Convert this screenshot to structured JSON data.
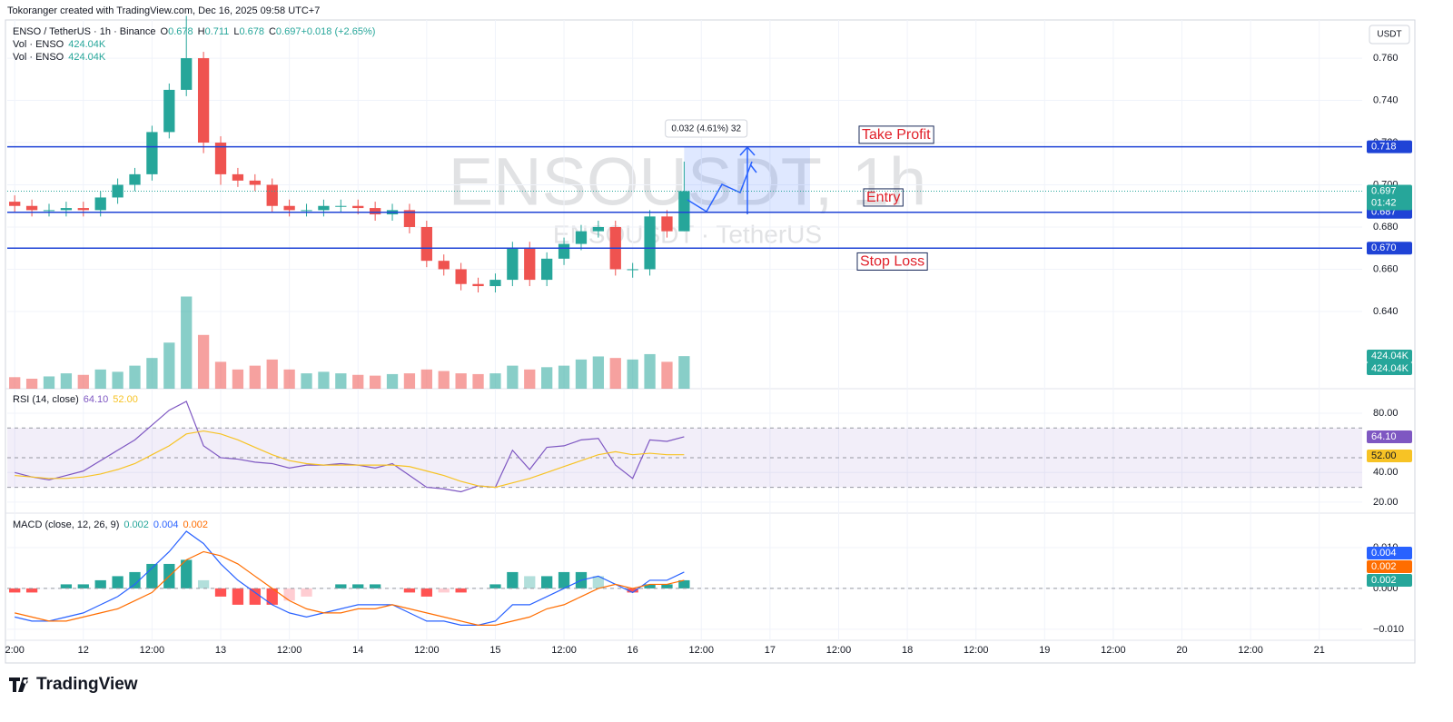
{
  "header": {
    "credit": "Tokoranger created with TradingView.com, Dec 16, 2025 09:58 UTC+7",
    "brand": "TradingView",
    "scale_unit": "USDT",
    "watermark": "ENSOUSDT, 1h",
    "watermark_sub": "ENSOUSDT · TetherUS"
  },
  "chart_data": [
    {
      "type": "candlestick",
      "title": "ENSO / TetherUS · 1h · Binance",
      "ohlc": [
        {
          "label": "O",
          "value": "0.678"
        },
        {
          "label": "H",
          "value": "0.711"
        },
        {
          "label": "L",
          "value": "0.678"
        },
        {
          "label": "C",
          "value": "0.697"
        },
        {
          "label": "",
          "value": "+0.018 (+2.65%)"
        }
      ],
      "volume_legend": [
        {
          "label": "Vol · ENSO",
          "value": "424.04K"
        },
        {
          "label": "Vol · ENSO",
          "value": "424.04K"
        }
      ],
      "x": [
        -12,
        -9,
        -6,
        -3,
        0,
        3,
        6,
        9,
        12,
        15,
        18,
        21,
        24,
        27,
        30,
        33,
        36,
        39,
        42,
        45,
        48,
        51,
        54,
        57,
        60,
        63,
        66,
        69,
        72,
        75,
        78,
        81,
        84,
        87,
        90,
        93,
        96,
        99,
        102,
        105
      ],
      "open": [
        0.692,
        0.69,
        0.688,
        0.688,
        0.689,
        0.688,
        0.694,
        0.7,
        0.705,
        0.725,
        0.745,
        0.76,
        0.72,
        0.705,
        0.702,
        0.7,
        0.69,
        0.688,
        0.688,
        0.69,
        0.69,
        0.689,
        0.686,
        0.688,
        0.68,
        0.664,
        0.66,
        0.653,
        0.652,
        0.655,
        0.67,
        0.655,
        0.665,
        0.672,
        0.678,
        0.68,
        0.66,
        0.66,
        0.685,
        0.678
      ],
      "high": [
        0.695,
        0.693,
        0.691,
        0.692,
        0.692,
        0.697,
        0.703,
        0.708,
        0.728,
        0.748,
        0.78,
        0.763,
        0.723,
        0.708,
        0.705,
        0.703,
        0.693,
        0.691,
        0.693,
        0.693,
        0.693,
        0.692,
        0.691,
        0.691,
        0.683,
        0.667,
        0.663,
        0.656,
        0.658,
        0.673,
        0.673,
        0.668,
        0.675,
        0.681,
        0.683,
        0.683,
        0.663,
        0.688,
        0.688,
        0.711
      ],
      "low": [
        0.687,
        0.685,
        0.685,
        0.685,
        0.685,
        0.685,
        0.691,
        0.697,
        0.702,
        0.722,
        0.742,
        0.715,
        0.7,
        0.699,
        0.697,
        0.687,
        0.685,
        0.685,
        0.685,
        0.687,
        0.686,
        0.683,
        0.683,
        0.677,
        0.661,
        0.657,
        0.65,
        0.649,
        0.649,
        0.652,
        0.652,
        0.652,
        0.662,
        0.669,
        0.675,
        0.657,
        0.656,
        0.657,
        0.675,
        0.678
      ],
      "close": [
        0.69,
        0.688,
        0.688,
        0.689,
        0.688,
        0.694,
        0.7,
        0.705,
        0.725,
        0.745,
        0.76,
        0.72,
        0.705,
        0.702,
        0.7,
        0.69,
        0.688,
        0.688,
        0.69,
        0.69,
        0.689,
        0.686,
        0.688,
        0.68,
        0.664,
        0.66,
        0.653,
        0.652,
        0.655,
        0.67,
        0.655,
        0.665,
        0.672,
        0.678,
        0.68,
        0.66,
        0.66,
        0.685,
        0.678,
        0.697
      ],
      "volume": [
        150000,
        130000,
        160000,
        200000,
        180000,
        250000,
        220000,
        300000,
        400000,
        600000,
        1200000,
        700000,
        350000,
        250000,
        300000,
        380000,
        250000,
        200000,
        220000,
        200000,
        180000,
        170000,
        190000,
        200000,
        250000,
        230000,
        200000,
        190000,
        200000,
        300000,
        250000,
        280000,
        300000,
        380000,
        420000,
        400000,
        380000,
        450000,
        350000,
        424040
      ],
      "volume_tags": [
        "424.04K",
        "424.04K"
      ],
      "volume_lim": [
        0,
        4800000
      ],
      "up_color": "#26a69a",
      "down_color": "#ef5350",
      "xlim": [
        -13.3,
        223.5
      ],
      "xticks": [
        {
          "value": -12,
          "label": "2:00"
        },
        {
          "value": 0,
          "label": "12"
        },
        {
          "value": 12,
          "label": "12:00"
        },
        {
          "value": 24,
          "label": "13"
        },
        {
          "value": 36,
          "label": "12:00"
        },
        {
          "value": 48,
          "label": "14"
        },
        {
          "value": 60,
          "label": "12:00"
        },
        {
          "value": 72,
          "label": "15"
        },
        {
          "value": 84,
          "label": "12:00"
        },
        {
          "value": 96,
          "label": "16"
        },
        {
          "value": 108,
          "label": "12:00"
        },
        {
          "value": 120,
          "label": "17"
        },
        {
          "value": 132,
          "label": "12:00"
        },
        {
          "value": 144,
          "label": "18"
        },
        {
          "value": 156,
          "label": "12:00"
        },
        {
          "value": 168,
          "label": "19"
        },
        {
          "value": 180,
          "label": "12:00"
        },
        {
          "value": 192,
          "label": "20"
        },
        {
          "value": 204,
          "label": "12:00"
        },
        {
          "value": 216,
          "label": "21"
        }
      ],
      "ylim": [
        0.6034,
        0.7781
      ],
      "yticks": [
        {
          "value": 0.64,
          "label": "0.640"
        },
        {
          "value": 0.66,
          "label": "0.660"
        },
        {
          "value": 0.68,
          "label": "0.680"
        },
        {
          "value": 0.7,
          "label": "0.700"
        },
        {
          "value": 0.72,
          "label": "0.720"
        },
        {
          "value": 0.74,
          "label": "0.740"
        },
        {
          "value": 0.76,
          "label": "0.760"
        }
      ],
      "grid": true,
      "levels": [
        {
          "name": "Take Profit",
          "value": 0.718,
          "label": "0.718"
        },
        {
          "name": "Entry",
          "value": 0.687,
          "label": "0.687"
        },
        {
          "name": "Stop Loss",
          "value": 0.67,
          "label": "0.670"
        }
      ],
      "level_color": "#1f43d6",
      "position": {
        "x": [
          105,
          127
        ],
        "top": 0.718,
        "bottom": 0.687,
        "label": "0.032 (4.61%) 32"
      },
      "last_price": {
        "value": 0.697,
        "label": "0.697",
        "countdown": "01:42"
      }
    },
    {
      "type": "line",
      "title": "RSI (14, close)",
      "x": [
        -12,
        -9,
        -6,
        -3,
        0,
        3,
        6,
        9,
        12,
        15,
        18,
        21,
        24,
        27,
        30,
        33,
        36,
        39,
        42,
        45,
        48,
        51,
        54,
        57,
        60,
        63,
        66,
        69,
        72,
        75,
        78,
        81,
        84,
        87,
        90,
        93,
        96,
        99,
        102,
        105
      ],
      "series": [
        {
          "color": "#7e57c2",
          "value_label": "64.10",
          "values": [
            40,
            37,
            35,
            38,
            41,
            48,
            55,
            62,
            72,
            82,
            88,
            58,
            50,
            49,
            47,
            46,
            43,
            45,
            45,
            46,
            45,
            43,
            46,
            38,
            30,
            29,
            27,
            31,
            30,
            55,
            42,
            57,
            58,
            62,
            63,
            45,
            36,
            62,
            61,
            64.1
          ]
        },
        {
          "color": "#f7c325",
          "value_label": "52.00",
          "values": [
            38,
            37,
            36,
            36,
            37,
            39,
            42,
            46,
            52,
            58,
            66,
            68,
            66,
            62,
            57,
            52,
            48,
            46,
            45,
            45,
            45,
            45,
            45,
            44,
            41,
            38,
            34,
            31,
            30,
            33,
            36,
            40,
            44,
            48,
            52,
            54,
            52,
            53,
            52,
            52
          ]
        }
      ],
      "ylim": [
        12.6,
        95.3
      ],
      "yticks": [
        {
          "value": 20,
          "label": "20.00"
        },
        {
          "value": 40,
          "label": "40.00"
        },
        {
          "value": 80,
          "label": "80.00"
        }
      ],
      "bands": [
        30,
        70
      ],
      "mid": 50,
      "band_color": "#7e57c2"
    },
    {
      "type": "macd",
      "title": "MACD (close, 12, 26, 9)",
      "x": [
        -12,
        -9,
        -6,
        -3,
        0,
        3,
        6,
        9,
        12,
        15,
        18,
        21,
        24,
        27,
        30,
        33,
        36,
        39,
        42,
        45,
        48,
        51,
        54,
        57,
        60,
        63,
        66,
        69,
        72,
        75,
        78,
        81,
        84,
        87,
        90,
        93,
        96,
        99,
        102,
        105
      ],
      "histogram": {
        "value_label": "0.002",
        "colors": [
          "#26a69a",
          "#b2dfdb",
          "#ffcdd2",
          "#ff5252"
        ],
        "values": [
          -0.001,
          -0.001,
          0,
          0.001,
          0.001,
          0.002,
          0.003,
          0.004,
          0.006,
          0.006,
          0.007,
          0.002,
          -0.002,
          -0.004,
          -0.004,
          -0.004,
          -0.003,
          -0.002,
          0,
          0.001,
          0.001,
          0.001,
          0,
          -0.001,
          -0.002,
          -0.001,
          -0.001,
          0,
          0.001,
          0.004,
          0.003,
          0.003,
          0.004,
          0.004,
          0.003,
          0,
          -0.001,
          0.001,
          0.001,
          0.002
        ]
      },
      "series": [
        {
          "color": "#2962ff",
          "value_label": "0.004",
          "values": [
            -0.007,
            -0.008,
            -0.008,
            -0.007,
            -0.006,
            -0.004,
            -0.002,
            0.001,
            0.005,
            0.009,
            0.014,
            0.011,
            0.006,
            0.002,
            -0.001,
            -0.004,
            -0.006,
            -0.007,
            -0.006,
            -0.005,
            -0.004,
            -0.004,
            -0.004,
            -0.006,
            -0.008,
            -0.008,
            -0.009,
            -0.009,
            -0.008,
            -0.004,
            -0.004,
            -0.002,
            0,
            0.002,
            0.003,
            0.001,
            -0.001,
            0.002,
            0.002,
            0.004
          ]
        },
        {
          "color": "#ff6d00",
          "value_label": "0.002",
          "values": [
            -0.006,
            -0.007,
            -0.008,
            -0.008,
            -0.007,
            -0.006,
            -0.005,
            -0.003,
            -0.001,
            0.003,
            0.007,
            0.009,
            0.008,
            0.006,
            0.003,
            0,
            -0.003,
            -0.005,
            -0.006,
            -0.006,
            -0.005,
            -0.005,
            -0.004,
            -0.005,
            -0.006,
            -0.007,
            -0.008,
            -0.009,
            -0.009,
            -0.008,
            -0.007,
            -0.005,
            -0.004,
            -0.002,
            0,
            0.001,
            0,
            0.001,
            0.001,
            0.002
          ]
        }
      ],
      "ylim": [
        -0.0127,
        0.018
      ],
      "yticks": [
        {
          "value": -0.01,
          "label": "−0.010"
        },
        {
          "value": 0,
          "label": "0.000"
        },
        {
          "value": 0.01,
          "label": "0.010"
        }
      ]
    }
  ]
}
